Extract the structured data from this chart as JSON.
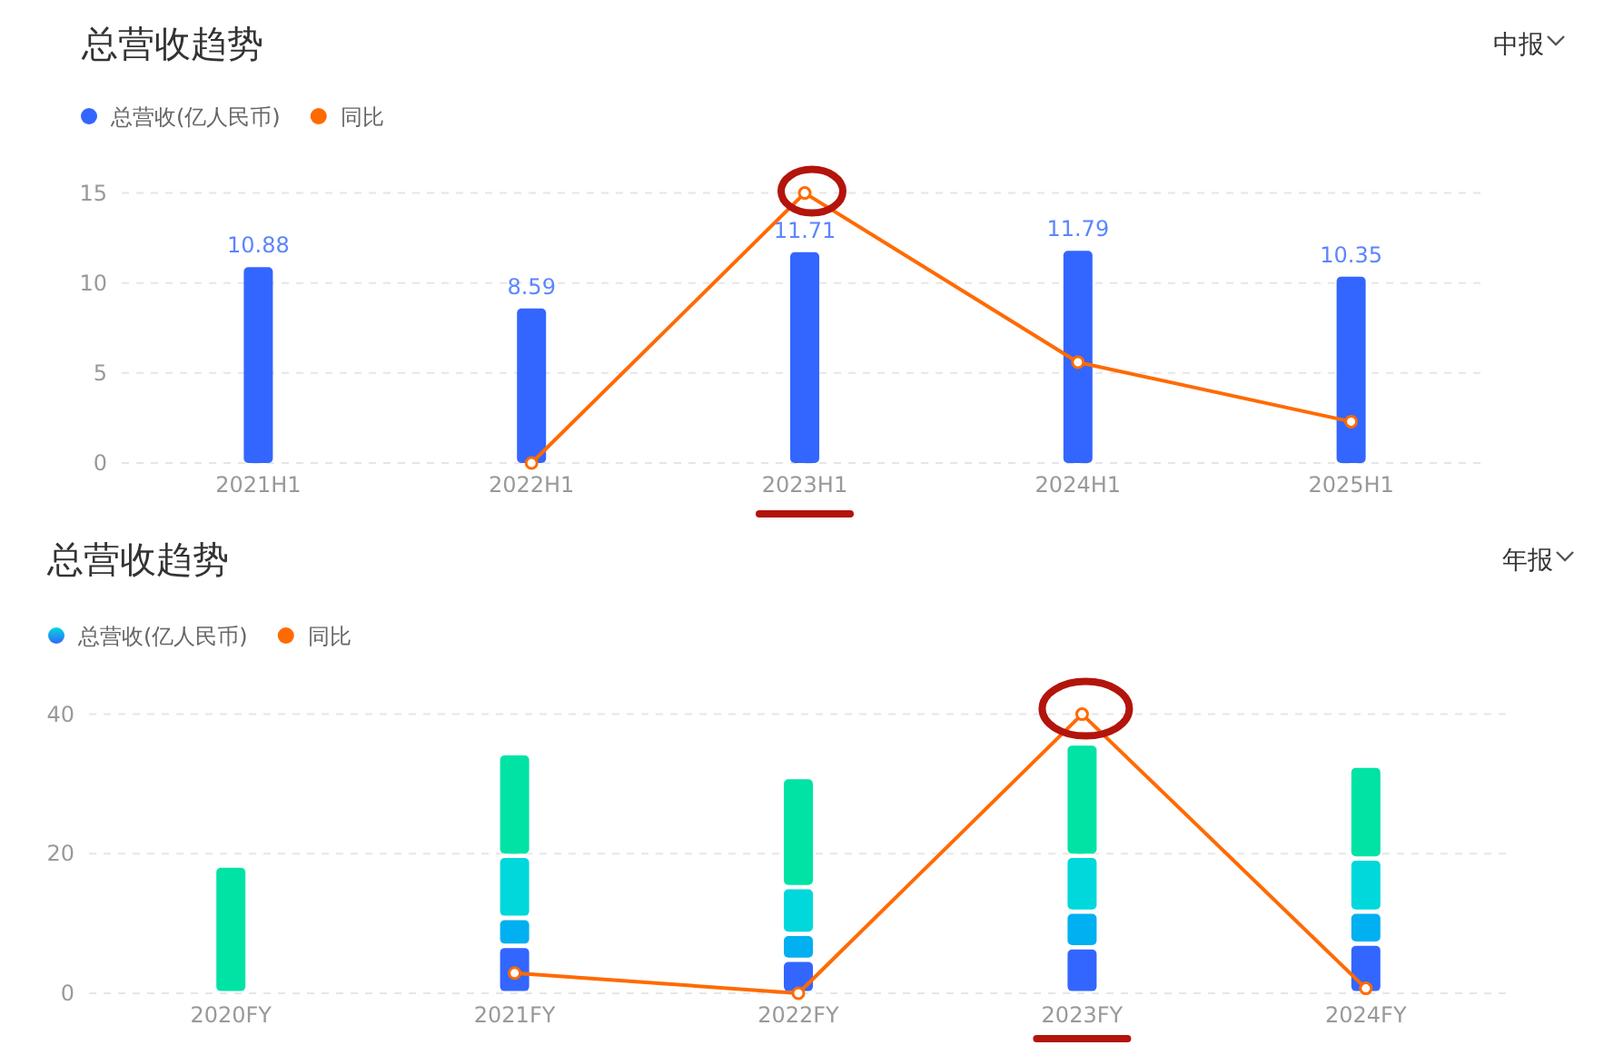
{
  "chart_data": [
    {
      "type": "bar",
      "title": "总营收趋势",
      "categories": [
        "2021H1",
        "2022H1",
        "2023H1",
        "2024H1",
        "2025H1"
      ],
      "series": [
        {
          "name": "总营收(亿人民币)",
          "color": "#3366ff",
          "values": [
            10.88,
            8.59,
            11.71,
            11.79,
            10.35
          ],
          "value_labels": [
            "10.88",
            "8.59",
            "11.71",
            "11.79",
            "10.35"
          ]
        },
        {
          "name": "同比",
          "type": "line",
          "color": "#ff6a00",
          "values": [
            null,
            0,
            15,
            5.6,
            2.3
          ]
        }
      ],
      "ylim": [
        0,
        15
      ],
      "yticks": [
        0,
        5,
        10,
        15
      ],
      "grid": "y",
      "legend": "top left",
      "marker": "circle",
      "annotations": [
        "中报"
      ]
    },
    {
      "type": "bar",
      "stacked": true,
      "title": "总营收趋势",
      "categories": [
        "2020FY",
        "2021FY",
        "2022FY",
        "2023FY",
        "2024FY"
      ],
      "series": [
        {
          "name": "总营收(亿人民币)",
          "color": "#3366ff",
          "values": [
            null,
            6.8,
            4.8,
            6.6,
            7.1
          ]
        },
        {
          "color": "#00b0f0",
          "values": [
            null,
            4.0,
            3.7,
            5.1,
            4.6
          ]
        },
        {
          "color": "#00d8dc",
          "values": [
            null,
            8.9,
            6.7,
            8.0,
            7.6
          ]
        },
        {
          "color": "#00e3a5",
          "values": [
            18.3,
            14.7,
            15.8,
            16.1,
            13.3
          ]
        },
        {
          "name": "同比",
          "type": "line",
          "color": "#ff6a00",
          "values": [
            null,
            2.9,
            0,
            40,
            0.7
          ]
        }
      ],
      "ylim": [
        0,
        40
      ],
      "yticks": [
        0,
        20,
        40
      ],
      "grid": "y",
      "legend": "top left",
      "marker": "circle",
      "annotations": [
        "年报"
      ]
    }
  ]
}
